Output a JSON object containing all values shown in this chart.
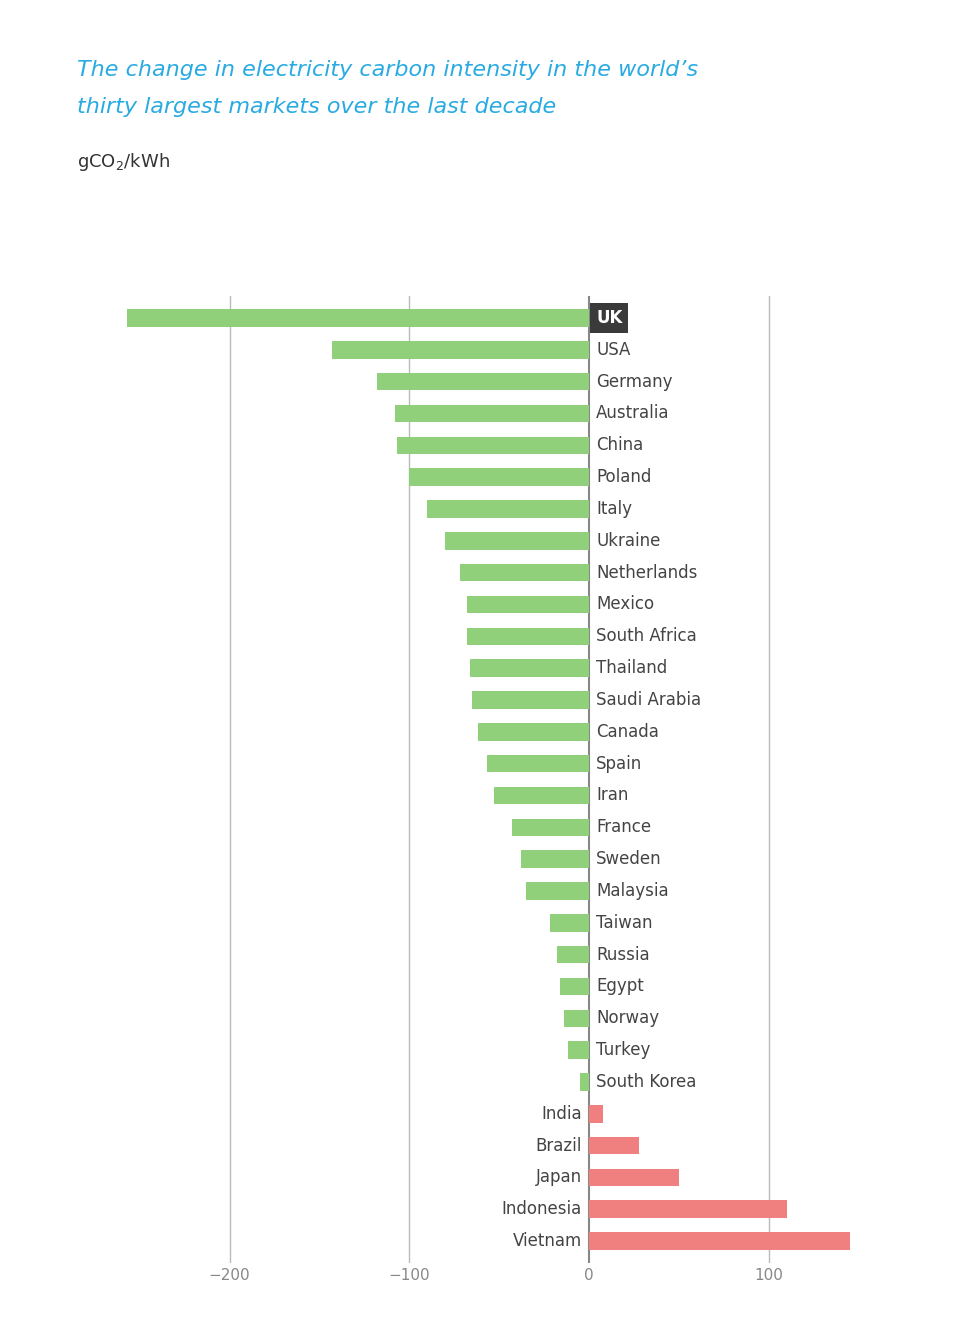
{
  "title_line1": "The change in electricity carbon intensity in the world’s",
  "title_line2": "thirty largest markets over the last decade",
  "title_color": "#29ABE2",
  "ylabel_color": "#333333",
  "countries": [
    "UK",
    "USA",
    "Germany",
    "Australia",
    "China",
    "Poland",
    "Italy",
    "Ukraine",
    "Netherlands",
    "Mexico",
    "South Africa",
    "Thailand",
    "Saudi Arabia",
    "Canada",
    "Spain",
    "Iran",
    "France",
    "Sweden",
    "Malaysia",
    "Taiwan",
    "Russia",
    "Egypt",
    "Norway",
    "Turkey",
    "South Korea",
    "India",
    "Brazil",
    "Japan",
    "Indonesia",
    "Vietnam"
  ],
  "values": [
    -257,
    -143,
    -118,
    -108,
    -107,
    -100,
    -90,
    -80,
    -72,
    -68,
    -68,
    -66,
    -65,
    -62,
    -57,
    -53,
    -43,
    -38,
    -35,
    -22,
    -18,
    -16,
    -14,
    -12,
    -5,
    8,
    28,
    50,
    110,
    145
  ],
  "bar_colors": [
    "#90D07A",
    "#90D07A",
    "#90D07A",
    "#90D07A",
    "#90D07A",
    "#90D07A",
    "#90D07A",
    "#90D07A",
    "#90D07A",
    "#90D07A",
    "#90D07A",
    "#90D07A",
    "#90D07A",
    "#90D07A",
    "#90D07A",
    "#90D07A",
    "#90D07A",
    "#90D07A",
    "#90D07A",
    "#90D07A",
    "#90D07A",
    "#90D07A",
    "#90D07A",
    "#90D07A",
    "#90D07A",
    "#F08080",
    "#F08080",
    "#F08080",
    "#F08080",
    "#F08080"
  ],
  "uk_label_bg": "#3A3A3A",
  "uk_label_color": "#FFFFFF",
  "grid_color": "#BBBBBB",
  "tick_label_color": "#888888",
  "country_label_color": "#444444",
  "xlim": [
    -285,
    185
  ],
  "xticks": [
    -200,
    -100,
    0,
    100
  ],
  "xtick_labels": [
    "−200",
    "−100",
    "0",
    "100"
  ],
  "bar_height": 0.55,
  "background_color": "#FFFFFF",
  "country_fontsize": 12,
  "tick_fontsize": 11,
  "title_fontsize": 16,
  "ylabel_fontsize": 13
}
